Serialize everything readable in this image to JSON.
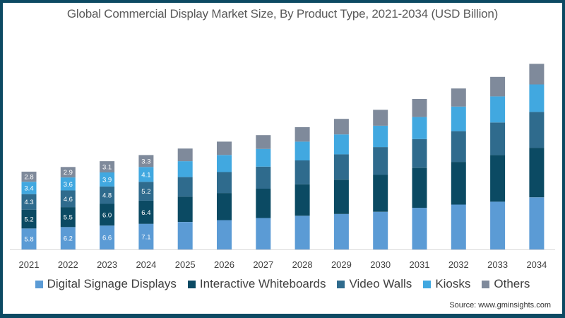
{
  "chart_data": {
    "type": "bar",
    "stacked": true,
    "title": "Global Commercial Display Market Size, By Product Type, 2021-2034 (USD Billion)",
    "xlabel": "",
    "ylabel": "",
    "grid": false,
    "legend_position": "bottom",
    "categories": [
      "2021",
      "2022",
      "2023",
      "2024",
      "2025",
      "2026",
      "2027",
      "2028",
      "2029",
      "2030",
      "2031",
      "2032",
      "2033",
      "2034"
    ],
    "series": [
      {
        "name": "Digital Signage Displays",
        "color": "#5b9bd5",
        "values": [
          5.8,
          6.2,
          6.6,
          7.1,
          7.6,
          8.1,
          8.7,
          9.3,
          9.8,
          10.4,
          11.5,
          12.4,
          13.2,
          14.4
        ]
      },
      {
        "name": "Interactive Whiteboards",
        "color": "#0b4a63",
        "values": [
          5.2,
          5.5,
          6.0,
          6.4,
          7.0,
          7.5,
          8.1,
          8.7,
          9.5,
          10.2,
          11.1,
          11.8,
          12.9,
          13.7
        ]
      },
      {
        "name": "Video Walls",
        "color": "#2f6b8d",
        "values": [
          4.3,
          4.6,
          4.8,
          5.2,
          5.4,
          5.8,
          6.1,
          6.6,
          7.0,
          7.7,
          7.9,
          8.5,
          9.0,
          9.9
        ]
      },
      {
        "name": "Kiosks",
        "color": "#41a8e0",
        "values": [
          3.4,
          3.6,
          3.9,
          4.1,
          4.4,
          4.7,
          4.9,
          5.2,
          5.5,
          5.9,
          6.1,
          6.8,
          7.2,
          7.6
        ]
      },
      {
        "name": "Others",
        "color": "#7f8a9b",
        "values": [
          2.8,
          2.9,
          3.1,
          3.3,
          3.5,
          3.7,
          3.8,
          4.0,
          4.3,
          4.4,
          5.0,
          5.0,
          5.4,
          5.7
        ]
      }
    ],
    "labeled_categories": [
      "2021",
      "2022",
      "2023",
      "2024"
    ],
    "ylim": [
      0,
      52
    ]
  },
  "source": "Source: www.gminsights.com",
  "colors": {
    "frame": "#0d4a63",
    "label_text": "#ffffff",
    "axis_line": "#d9d9d9",
    "tick_text": "#404040"
  }
}
